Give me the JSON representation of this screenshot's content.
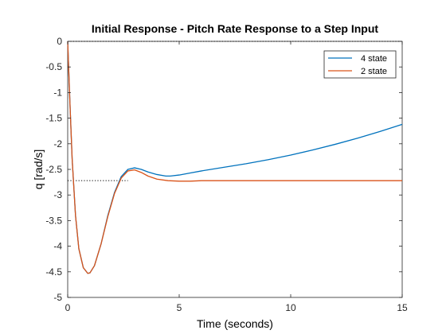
{
  "chart_data": {
    "type": "line",
    "title": "Initial Response - Pitch Rate Response to a Step Input",
    "xlabel": "Time (seconds)",
    "ylabel": "q [rad/s]",
    "xlim": [
      0,
      15
    ],
    "ylim": [
      -5,
      0
    ],
    "xticks": [
      0,
      5,
      10,
      15
    ],
    "xtick_labels": [
      "0",
      "5",
      "10",
      "15"
    ],
    "yticks": [
      0,
      -0.5,
      -1,
      -1.5,
      -2,
      -2.5,
      -3,
      -3.5,
      -4,
      -4.5,
      -5
    ],
    "ytick_labels": [
      "0",
      "-0.5",
      "-1",
      "-1.5",
      "-2",
      "-2.5",
      "-3",
      "-3.5",
      "-4",
      "-4.5",
      "-5"
    ],
    "grid": false,
    "legend_position": "top-right",
    "reference_lines": [
      {
        "y": 0,
        "style": "dotted"
      },
      {
        "y": -2.72,
        "x_start": 0,
        "x_end": 2.7,
        "style": "dotted"
      }
    ],
    "series": [
      {
        "name": "4 state",
        "color": "#0072BD",
        "x": [
          0,
          0.1,
          0.2,
          0.35,
          0.5,
          0.7,
          0.9,
          1.0,
          1.2,
          1.5,
          1.8,
          2.1,
          2.4,
          2.7,
          3.0,
          3.3,
          3.6,
          4.0,
          4.4,
          4.6,
          5.0,
          5.5,
          6.0,
          7.0,
          8.0,
          9.0,
          10.0,
          11.0,
          12.0,
          13.0,
          14.0,
          15.0
        ],
        "y": [
          0,
          -1.2,
          -2.3,
          -3.4,
          -4.05,
          -4.42,
          -4.53,
          -4.52,
          -4.38,
          -3.95,
          -3.4,
          -2.95,
          -2.64,
          -2.5,
          -2.47,
          -2.5,
          -2.55,
          -2.6,
          -2.63,
          -2.63,
          -2.61,
          -2.57,
          -2.53,
          -2.46,
          -2.39,
          -2.31,
          -2.22,
          -2.12,
          -2.01,
          -1.89,
          -1.76,
          -1.62
        ]
      },
      {
        "name": "2 state",
        "color": "#D95319",
        "x": [
          0,
          0.1,
          0.2,
          0.35,
          0.5,
          0.7,
          0.9,
          1.0,
          1.2,
          1.5,
          1.8,
          2.1,
          2.4,
          2.7,
          3.0,
          3.3,
          3.6,
          4.0,
          4.5,
          5.0,
          5.5,
          6.0,
          7.0,
          8.0,
          9.0,
          10.0,
          11.0,
          12.0,
          13.0,
          14.0,
          15.0
        ],
        "y": [
          0,
          -1.2,
          -2.3,
          -3.4,
          -4.05,
          -4.42,
          -4.53,
          -4.52,
          -4.38,
          -3.95,
          -3.42,
          -2.97,
          -2.67,
          -2.53,
          -2.51,
          -2.56,
          -2.63,
          -2.69,
          -2.72,
          -2.73,
          -2.73,
          -2.72,
          -2.72,
          -2.72,
          -2.72,
          -2.72,
          -2.72,
          -2.72,
          -2.72,
          -2.72,
          -2.72
        ]
      }
    ]
  }
}
